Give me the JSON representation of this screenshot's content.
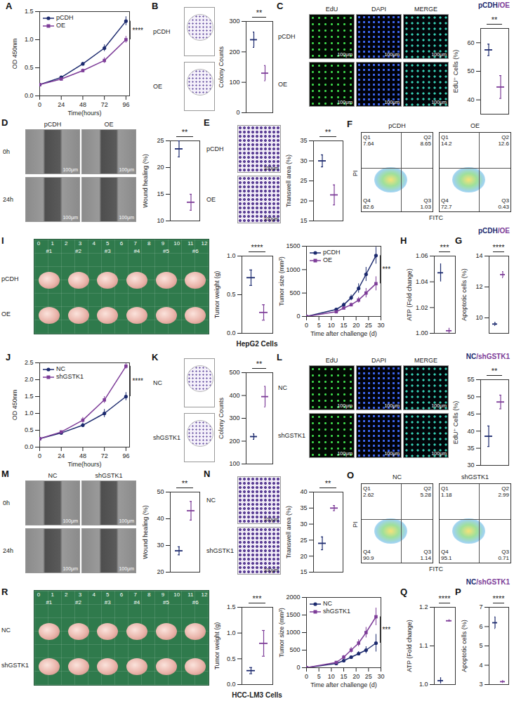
{
  "chart_data": [
    {
      "type": "line",
      "panel": "A",
      "xlabel": "Time(hours)",
      "ylabel": "OD 450nm",
      "x": [
        0,
        24,
        48,
        72,
        96
      ],
      "xlim": [
        0,
        100
      ],
      "xticks": [
        0,
        24,
        48,
        72,
        96
      ],
      "ylim": [
        0,
        1.5
      ],
      "yticks": [
        {
          "value": 0,
          "label": "0.0"
        },
        0.5,
        {
          "value": 1,
          "label": "1.0"
        },
        1.5
      ],
      "legend": "top-left",
      "significance": "****",
      "series": [
        {
          "name": "pCDH",
          "color": "#1c2a6e",
          "marker": "circle",
          "values": [
            0.2,
            0.33,
            0.57,
            0.85,
            1.33
          ],
          "errors": [
            0.01,
            0.02,
            0.03,
            0.06,
            0.08
          ]
        },
        {
          "name": "OE",
          "color": "#7d3c98",
          "marker": "square",
          "values": [
            0.2,
            0.3,
            0.45,
            0.63,
            1.0
          ],
          "errors": [
            0.01,
            0.02,
            0.03,
            0.05,
            0.06
          ]
        }
      ]
    },
    {
      "type": "dot",
      "ylabel": "Colony Counts",
      "categories": [
        "pCDH",
        "OE"
      ],
      "values": [
        240,
        130
      ],
      "errors": [
        25,
        25
      ],
      "colors": [
        "#1c2a6e",
        "#7d3c98"
      ],
      "ylim": [
        0,
        300
      ],
      "yticks": [
        0,
        100,
        200,
        300
      ],
      "tick_labels": "y",
      "significance": "**"
    },
    {
      "type": "dot",
      "ylabel": "EdU⁺ Cells (%)",
      "categories": [
        "pCDH",
        "OE"
      ],
      "values": [
        57.5,
        44.5
      ],
      "errors": [
        2,
        4
      ],
      "colors": [
        "#1c2a6e",
        "#7d3c98"
      ],
      "ylim": [
        35,
        65
      ],
      "yticks": [
        40,
        50,
        60
      ],
      "tick_labels": "y",
      "significance": "**"
    },
    {
      "type": "dot",
      "ylabel": "Wound healing (%)",
      "categories": [
        "pCDH",
        "OE"
      ],
      "values": [
        23.5,
        13.5
      ],
      "errors": [
        1.5,
        1.5
      ],
      "colors": [
        "#1c2a6e",
        "#7d3c98"
      ],
      "ylim": [
        10,
        25
      ],
      "yticks": [
        10,
        15,
        20,
        25
      ],
      "tick_labels": "y",
      "significance": "**"
    },
    {
      "type": "dot",
      "ylabel": "Transwell area (%)",
      "categories": [
        "pCDH",
        "OE"
      ],
      "values": [
        30,
        21.5
      ],
      "errors": [
        1.5,
        2.5
      ],
      "colors": [
        "#1c2a6e",
        "#7d3c98"
      ],
      "ylim": [
        15,
        35
      ],
      "yticks": [
        15,
        20,
        25,
        30,
        35
      ],
      "tick_labels": "y",
      "significance": "**"
    },
    {
      "type": "quadrant",
      "panel": "F",
      "xlabel": "FITC",
      "ylabel": "PI",
      "plots": [
        {
          "name": "pCDH",
          "quadrants": [
            {
              "label": "Q1",
              "value": 7.64
            },
            {
              "label": "Q2",
              "value": 8.65
            },
            {
              "label": "Q3",
              "value": 1.03
            },
            {
              "label": "Q4",
              "value": 82.6
            }
          ]
        },
        {
          "name": "OE",
          "quadrants": [
            {
              "label": "Q1",
              "value": 14.2
            },
            {
              "label": "Q2",
              "value": 12.6
            },
            {
              "label": "Q3",
              "value": 0.43
            },
            {
              "label": "Q4",
              "value": 72.7
            }
          ]
        }
      ]
    },
    {
      "type": "dot",
      "ylabel": "Tumor weight (g)",
      "categories": [
        "pCDH",
        "OE"
      ],
      "values": [
        0.72,
        0.27
      ],
      "errors": [
        0.1,
        0.1
      ],
      "colors": [
        "#1c2a6e",
        "#7d3c98"
      ],
      "ylim": [
        0,
        1
      ],
      "yticks": [
        {
          "value": 0,
          "label": "0.0"
        },
        0.5,
        {
          "value": 1,
          "label": "1.0"
        }
      ],
      "tick_labels": "y",
      "significance": "****"
    },
    {
      "type": "line",
      "xlabel": "Time after challenge (d)",
      "ylabel": "Tumor size (mm³)",
      "x": [
        0,
        12,
        15,
        18,
        21,
        24,
        28
      ],
      "xlim": [
        0,
        30
      ],
      "xticks": [
        0,
        5,
        10,
        15,
        20,
        25,
        30
      ],
      "ylim": [
        0,
        1500
      ],
      "yticks": [
        0,
        500,
        1000,
        1500
      ],
      "legend": "top-left",
      "significance": "***",
      "series": [
        {
          "name": "pCDH",
          "color": "#1c2a6e",
          "marker": "circle",
          "values": [
            0,
            150,
            250,
            400,
            600,
            900,
            1300
          ],
          "errors": [
            0,
            30,
            40,
            60,
            100,
            150,
            180
          ]
        },
        {
          "name": "OE",
          "color": "#7d3c98",
          "marker": "square",
          "values": [
            0,
            100,
            180,
            250,
            350,
            500,
            700
          ],
          "errors": [
            0,
            20,
            30,
            40,
            60,
            100,
            150
          ]
        }
      ]
    },
    {
      "type": "dot",
      "panel": "H",
      "ylabel": "ATP (Fold change)",
      "categories": [
        "pCDH",
        "OE"
      ],
      "values": [
        1.047,
        1.002
      ],
      "errors": [
        0.007,
        0.002
      ],
      "colors": [
        "#1c2a6e",
        "#7d3c98"
      ],
      "ylim": [
        1,
        1.06
      ],
      "yticks": [
        {
          "value": 1,
          "label": "1.00"
        },
        1.02,
        1.04,
        1.06
      ],
      "tick_labels": "y",
      "significance": "***"
    },
    {
      "type": "dot",
      "panel": "G",
      "ylabel": "Apoptotic cells (%)",
      "categories": [
        "pCDH",
        "OE"
      ],
      "values": [
        9.6,
        12.8
      ],
      "errors": [
        0.1,
        0.2
      ],
      "colors": [
        "#1c2a6e",
        "#7d3c98"
      ],
      "ylim": [
        9,
        14
      ],
      "yticks": [
        10,
        12,
        14
      ],
      "tick_labels": "y",
      "significance": "****"
    },
    {
      "type": "line",
      "panel": "J",
      "xlabel": "Time(hours)",
      "ylabel": "OD 450nm",
      "x": [
        0,
        24,
        48,
        72,
        96
      ],
      "xlim": [
        0,
        100
      ],
      "xticks": [
        0,
        24,
        48,
        72,
        96
      ],
      "ylim": [
        0,
        2.5
      ],
      "yticks": [
        {
          "value": 0,
          "label": "0.0"
        },
        0.5,
        {
          "value": 1,
          "label": "1.0"
        },
        1.5,
        {
          "value": 2,
          "label": "2.0"
        },
        2.5
      ],
      "legend": "top-left",
      "significance": "****",
      "series": [
        {
          "name": "NC",
          "color": "#1c2a6e",
          "marker": "circle",
          "values": [
            0.25,
            0.42,
            0.65,
            1.0,
            1.5
          ],
          "errors": [
            0.01,
            0.03,
            0.06,
            0.12,
            0.12
          ]
        },
        {
          "name": "shGSTK1",
          "color": "#7d3c98",
          "marker": "square",
          "values": [
            0.25,
            0.45,
            0.8,
            1.4,
            2.4
          ],
          "errors": [
            0.01,
            0.03,
            0.08,
            0.1,
            0.08
          ]
        }
      ]
    },
    {
      "type": "dot",
      "ylabel": "Colony Counts",
      "categories": [
        "NC",
        "shGSTK1"
      ],
      "values": [
        220,
        395
      ],
      "errors": [
        12,
        45
      ],
      "colors": [
        "#1c2a6e",
        "#7d3c98"
      ],
      "ylim": [
        100,
        500
      ],
      "yticks": [
        100,
        200,
        300,
        400,
        500
      ],
      "tick_labels": "y",
      "significance": "**"
    },
    {
      "type": "dot",
      "ylabel": "EdU⁺ Cells (%)",
      "categories": [
        "NC",
        "shGSTK1"
      ],
      "values": [
        38.5,
        48.5
      ],
      "errors": [
        3,
        2
      ],
      "colors": [
        "#1c2a6e",
        "#7d3c98"
      ],
      "ylim": [
        30,
        55
      ],
      "yticks": [
        30,
        35,
        40,
        45,
        50,
        55
      ],
      "tick_labels": "y",
      "significance": "**"
    },
    {
      "type": "dot",
      "ylabel": "Wound healing (%)",
      "categories": [
        "NC",
        "shGSTK1"
      ],
      "values": [
        28,
        43
      ],
      "errors": [
        1.5,
        3.5
      ],
      "colors": [
        "#1c2a6e",
        "#7d3c98"
      ],
      "ylim": [
        20,
        50
      ],
      "yticks": [
        20,
        30,
        40,
        50
      ],
      "tick_labels": "y",
      "significance": "**"
    },
    {
      "type": "dot",
      "ylabel": "Transwell area (%)",
      "categories": [
        "NC",
        "shGSTK1"
      ],
      "values": [
        24,
        35
      ],
      "errors": [
        2,
        0.8
      ],
      "colors": [
        "#1c2a6e",
        "#7d3c98"
      ],
      "ylim": [
        15,
        40
      ],
      "yticks": [
        15,
        20,
        25,
        30,
        35,
        40
      ],
      "tick_labels": "y",
      "significance": "**"
    },
    {
      "type": "quadrant",
      "panel": "O",
      "xlabel": "FITC",
      "ylabel": "PI",
      "plots": [
        {
          "name": "NC",
          "quadrants": [
            {
              "label": "Q1",
              "value": 2.62
            },
            {
              "label": "Q2",
              "value": 5.28
            },
            {
              "label": "Q3",
              "value": 1.14
            },
            {
              "label": "Q4",
              "value": 90.9
            }
          ]
        },
        {
          "name": "shGSTK1",
          "quadrants": [
            {
              "label": "Q1",
              "value": 1.18
            },
            {
              "label": "Q2",
              "value": 2.99
            },
            {
              "label": "Q3",
              "value": 0.71
            },
            {
              "label": "Q4",
              "value": 95.1
            }
          ]
        }
      ]
    },
    {
      "type": "dot",
      "ylabel": "Tumor weight (g)",
      "categories": [
        "NC",
        "shGSTK1"
      ],
      "values": [
        0.27,
        0.8
      ],
      "errors": [
        0.06,
        0.25
      ],
      "colors": [
        "#1c2a6e",
        "#7d3c98"
      ],
      "ylim": [
        0,
        1.5
      ],
      "yticks": [
        {
          "value": 0,
          "label": "0.0"
        },
        0.5,
        {
          "value": 1,
          "label": "1.0"
        },
        1.5
      ],
      "tick_labels": "y",
      "significance": "***"
    },
    {
      "type": "line",
      "xlabel": "Time after challenge (d)",
      "ylabel": "Tumor size (mm³)",
      "x": [
        0,
        12,
        15,
        18,
        21,
        24,
        28
      ],
      "xlim": [
        0,
        30
      ],
      "xticks": [
        0,
        5,
        10,
        15,
        20,
        25,
        30
      ],
      "ylim": [
        0,
        2000
      ],
      "yticks": [
        0,
        500,
        1000,
        1500,
        2000
      ],
      "legend": "top-left",
      "significance": "***",
      "series": [
        {
          "name": "NC",
          "color": "#1c2a6e",
          "marker": "circle",
          "values": [
            0,
            120,
            200,
            300,
            400,
            500,
            700
          ],
          "errors": [
            0,
            20,
            30,
            40,
            60,
            100,
            250
          ]
        },
        {
          "name": "shGSTK1",
          "color": "#7d3c98",
          "marker": "square",
          "values": [
            0,
            150,
            300,
            500,
            700,
            1000,
            1450
          ],
          "errors": [
            0,
            30,
            50,
            80,
            100,
            150,
            250
          ]
        }
      ]
    },
    {
      "type": "dot",
      "panel": "Q",
      "ylabel": "ATP (Fold change)",
      "categories": [
        "NC",
        "shGSTK1"
      ],
      "values": [
        1.01,
        1.165
      ],
      "errors": [
        0.008,
        0.003
      ],
      "colors": [
        "#1c2a6e",
        "#7d3c98"
      ],
      "ylim": [
        1,
        1.2
      ],
      "yticks": [
        {
          "value": 1,
          "label": "1.0"
        },
        1.1,
        1.2
      ],
      "tick_labels": "y",
      "significance": "****"
    },
    {
      "type": "dot",
      "panel": "P",
      "ylabel": "Apoptotic cells (%)",
      "categories": [
        "NC",
        "shGSTK1"
      ],
      "values": [
        6.2,
        3.15
      ],
      "errors": [
        0.3,
        0.05
      ],
      "colors": [
        "#1c2a6e",
        "#7d3c98"
      ],
      "ylim": [
        3,
        7
      ],
      "yticks": [
        3,
        4,
        5,
        6,
        7
      ],
      "tick_labels": "y",
      "significance": "****"
    }
  ],
  "image_panels": [
    {
      "panel": "B",
      "type": "colony",
      "rows": [
        "pCDH",
        "OE"
      ]
    },
    {
      "panel": "C",
      "type": "fluorescence",
      "rows": [
        "pCDH",
        "OE"
      ],
      "columns": [
        "EdU",
        "DAPI",
        "MERGE"
      ],
      "scale_bar": "100μm"
    },
    {
      "panel": "D",
      "type": "wound",
      "rows": [
        "0h",
        "24h"
      ],
      "columns": [
        "pCDH",
        "OE"
      ],
      "scale_bar": "100μm"
    },
    {
      "panel": "E",
      "type": "transwell",
      "rows": [
        "pCDH",
        "OE"
      ],
      "scale_bar": "100μm"
    },
    {
      "panel": "I",
      "type": "tumor",
      "rows": [
        "pCDH",
        "OE"
      ],
      "columns": [
        "#1",
        "#2",
        "#3",
        "#4",
        "#5",
        "#6"
      ],
      "ruler": [
        0,
        1,
        2,
        3,
        4,
        5,
        6,
        7,
        8,
        9,
        10,
        11,
        12
      ]
    },
    {
      "panel": "K",
      "type": "colony",
      "rows": [
        "NC",
        "shGSTK1"
      ]
    },
    {
      "panel": "L",
      "type": "fluorescence",
      "rows": [
        "NC",
        "shGSTK1"
      ],
      "columns": [
        "EdU",
        "DAPI",
        "MERGE"
      ],
      "scale_bar": "100μm"
    },
    {
      "panel": "M",
      "type": "wound",
      "rows": [
        "0h",
        "24h"
      ],
      "columns": [
        "NC",
        "shGSTK1"
      ],
      "scale_bar": "100μm"
    },
    {
      "panel": "N",
      "type": "transwell",
      "rows": [
        "NC",
        "shGSTK1"
      ],
      "scale_bar": "100μm"
    },
    {
      "panel": "R",
      "type": "tumor",
      "rows": [
        "NC",
        "shGSTK1"
      ],
      "columns": [
        "#1",
        "#2",
        "#3",
        "#4",
        "#5",
        "#6"
      ],
      "ruler": [
        0,
        1,
        2,
        3,
        4,
        5,
        6,
        7,
        8,
        9,
        10,
        11,
        12
      ]
    }
  ],
  "groups": [
    {
      "label": "HepG2 Cells",
      "key": [
        {
          "text": "pCDH",
          "color": "#1c2a6e"
        },
        {
          "text": "/",
          "color": "#7d3c98"
        },
        {
          "text": "OE",
          "color": "#7d3c98"
        }
      ]
    },
    {
      "label": "HCC-LM3 Cells",
      "key": [
        {
          "text": "NC",
          "color": "#1c2a6e"
        },
        {
          "text": "/",
          "color": "#7d3c98"
        },
        {
          "text": "shGSTK1",
          "color": "#7d3c98"
        }
      ]
    }
  ]
}
